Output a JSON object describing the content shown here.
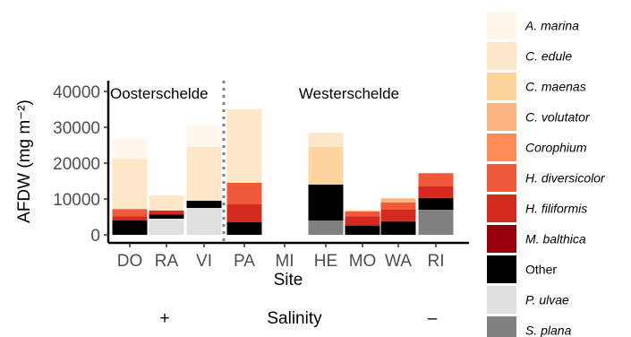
{
  "chart_data": {
    "type": "bar",
    "stacked": true,
    "xlabel": "Site",
    "ylabel": "AFDW (mg m⁻²)",
    "ylim": [
      0,
      42000
    ],
    "yticks": [
      0,
      10000,
      20000,
      30000,
      40000
    ],
    "grid": false,
    "legend_position": "right",
    "categories": [
      "DO",
      "RA",
      "VI",
      "PA",
      "MI",
      "HE",
      "MO",
      "WA",
      "RI"
    ],
    "regions": [
      {
        "label": "Oosterschelde",
        "categories": [
          "DO",
          "RA",
          "VI"
        ]
      },
      {
        "label": "Westerschelde",
        "categories": [
          "PA",
          "MI",
          "HE",
          "MO",
          "WA",
          "RI"
        ]
      }
    ],
    "salinity": {
      "label": "Salinity",
      "high": "+",
      "low": "–"
    },
    "series": [
      {
        "name": "S. plana",
        "color": "#808080",
        "values": [
          0,
          0,
          0,
          0,
          0,
          4000,
          0,
          0,
          7000
        ]
      },
      {
        "name": "P. ulvae",
        "color": "#e0e0e0",
        "values": [
          0,
          4500,
          7500,
          0,
          0,
          0,
          0,
          0,
          0
        ]
      },
      {
        "name": "Other",
        "color": "#000000",
        "values": [
          4000,
          1200,
          2000,
          3500,
          0,
          10000,
          2500,
          3800,
          3300
        ]
      },
      {
        "name": "M. balthica",
        "color": "#99000d",
        "values": [
          0,
          0,
          0,
          0,
          0,
          0,
          200,
          0,
          0
        ]
      },
      {
        "name": "H. filiformis",
        "color": "#d42a20",
        "values": [
          1200,
          1100,
          0,
          5000,
          0,
          0,
          2500,
          3200,
          3200
        ]
      },
      {
        "name": "H. diversicolor",
        "color": "#ef5a3d",
        "values": [
          2000,
          0,
          0,
          6000,
          0,
          0,
          1300,
          2000,
          3700
        ]
      },
      {
        "name": "Corophium",
        "color": "#fc8d59",
        "values": [
          0,
          0,
          0,
          0,
          0,
          0,
          0,
          0,
          0
        ]
      },
      {
        "name": "C. volutator",
        "color": "#fdb57f",
        "values": [
          0,
          0,
          0,
          0,
          0,
          0,
          0,
          1200,
          0
        ]
      },
      {
        "name": "C. maenas",
        "color": "#fdd49e",
        "values": [
          0,
          0,
          0,
          0,
          0,
          10500,
          400,
          0,
          0
        ]
      },
      {
        "name": "C. edule",
        "color": "#fee6c8",
        "values": [
          14000,
          4200,
          15000,
          20500,
          0,
          4000,
          0,
          0,
          0
        ]
      },
      {
        "name": "A. marina",
        "color": "#fff6ec",
        "values": [
          5600,
          0,
          6000,
          0,
          0,
          0,
          0,
          0,
          0
        ]
      }
    ]
  }
}
